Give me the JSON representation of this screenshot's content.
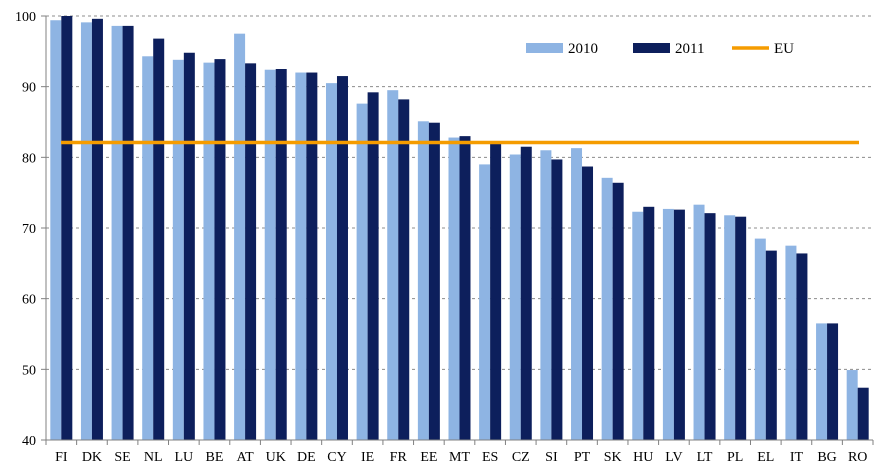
{
  "chart_data": {
    "type": "bar",
    "title": "",
    "xlabel": "",
    "ylabel": "",
    "ylim": [
      40,
      100
    ],
    "yticks": [
      40,
      50,
      60,
      70,
      80,
      90,
      100
    ],
    "grid": "horizontal-dashed",
    "legend_position": "top-right",
    "categories": [
      "FI",
      "DK",
      "SE",
      "NL",
      "LU",
      "BE",
      "AT",
      "UK",
      "DE",
      "CY",
      "IE",
      "FR",
      "EE",
      "MT",
      "ES",
      "CZ",
      "SI",
      "PT",
      "SK",
      "HU",
      "LV",
      "LT",
      "PL",
      "EL",
      "IT",
      "BG",
      "RO"
    ],
    "series": [
      {
        "name": "2010",
        "color": "#8eb4e3",
        "values": [
          99.4,
          99.1,
          98.6,
          94.3,
          93.8,
          93.4,
          97.5,
          92.4,
          92.0,
          90.5,
          87.6,
          89.5,
          85.1,
          82.8,
          79.0,
          80.4,
          81.0,
          81.3,
          77.1,
          72.3,
          72.7,
          73.3,
          71.8,
          68.5,
          67.5,
          56.5,
          49.9
        ],
        "series_type": "bar"
      },
      {
        "name": "2011",
        "color": "#0d1f5c",
        "values": [
          100.0,
          99.6,
          98.6,
          96.8,
          94.8,
          93.9,
          93.3,
          92.5,
          92.0,
          91.5,
          89.2,
          88.2,
          84.9,
          83.0,
          82.0,
          81.5,
          79.7,
          78.7,
          76.4,
          73.0,
          72.6,
          72.1,
          71.6,
          66.8,
          66.4,
          56.5,
          47.4
        ],
        "series_type": "bar"
      },
      {
        "name": "EU",
        "color": "#f59c00",
        "value": 82.1,
        "series_type": "line"
      }
    ]
  }
}
